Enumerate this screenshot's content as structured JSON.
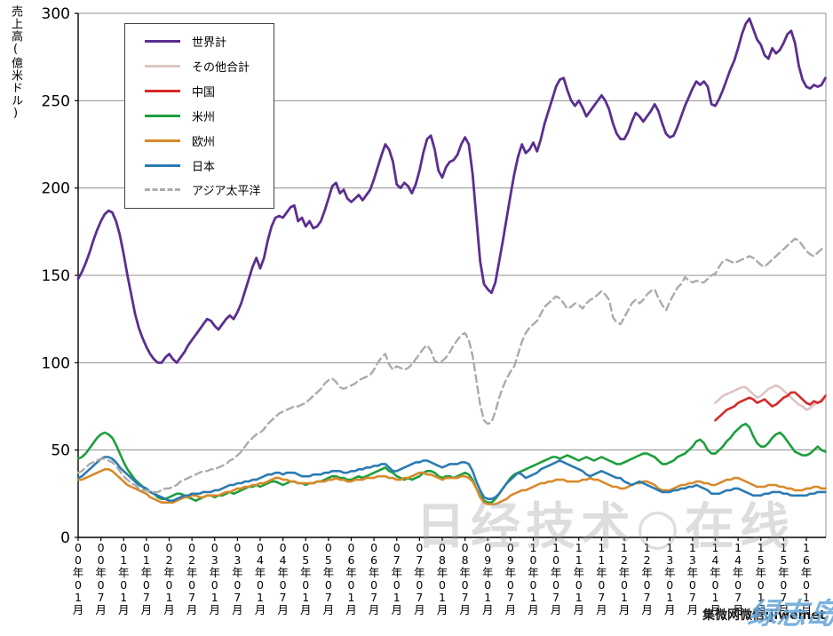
{
  "chart_data": {
    "type": "line",
    "title": "",
    "ylabel": "売上高(億米ドル)",
    "xlabel": "",
    "ylim": [
      0,
      300
    ],
    "ytick_step": 50,
    "grid": true,
    "legend_position": "top-left-inside",
    "x_start": "2000-01",
    "x_end": "2016-06",
    "months_total": 198,
    "x_tick_labels": [
      "00年01月",
      "00年07月",
      "01年01月",
      "01年07月",
      "02年01月",
      "02年07月",
      "03年01月",
      "03年07月",
      "04年01月",
      "04年07月",
      "05年01月",
      "05年07月",
      "06年01月",
      "06年07月",
      "07年01月",
      "07年07月",
      "08年01月",
      "08年07月",
      "09年01月",
      "09年07月",
      "10年01月",
      "10年07月",
      "11年01月",
      "11年07月",
      "12年01月",
      "12年07月",
      "13年01月",
      "13年07月",
      "14年01月",
      "14年07月",
      "15年01月",
      "15年07月",
      "16年01月"
    ],
    "series": [
      {
        "name": "世界計",
        "color": "#5B2E90",
        "dash": null,
        "width": 2.8,
        "start_month": 0,
        "values": [
          148,
          152,
          157,
          163,
          170,
          176,
          181,
          185,
          187,
          186,
          181,
          173,
          162,
          150,
          139,
          128,
          120,
          114,
          109,
          105,
          102,
          100,
          100,
          103,
          105,
          102,
          100,
          103,
          106,
          110,
          113,
          116,
          119,
          122,
          125,
          124,
          121,
          119,
          122,
          125,
          127,
          125,
          129,
          134,
          141,
          148,
          155,
          160,
          154,
          160,
          170,
          178,
          183,
          184,
          183,
          186,
          189,
          190,
          181,
          183,
          178,
          181,
          177,
          178,
          181,
          187,
          194,
          201,
          203,
          197,
          199,
          194,
          192,
          194,
          196,
          193,
          196,
          199,
          205,
          212,
          219,
          225,
          222,
          215,
          202,
          200,
          203,
          201,
          197,
          202,
          210,
          220,
          228,
          230,
          222,
          210,
          206,
          212,
          215,
          216,
          219,
          225,
          229,
          225,
          208,
          183,
          158,
          145,
          142,
          140,
          146,
          158,
          170,
          183,
          196,
          208,
          218,
          225,
          220,
          222,
          226,
          221,
          228,
          237,
          244,
          251,
          258,
          262,
          263,
          256,
          250,
          247,
          250,
          246,
          241,
          244,
          247,
          250,
          253,
          250,
          245,
          237,
          231,
          228,
          228,
          232,
          238,
          243,
          241,
          238,
          241,
          244,
          248,
          244,
          237,
          231,
          229,
          230,
          235,
          241,
          247,
          252,
          257,
          261,
          259,
          261,
          258,
          248,
          247,
          251,
          256,
          262,
          268,
          273,
          280,
          288,
          294,
          297,
          291,
          285,
          282,
          276,
          274,
          280,
          277,
          279,
          283,
          288,
          290,
          283,
          270,
          262,
          258,
          257,
          259,
          258,
          259,
          263
        ]
      },
      {
        "name": "その他合計",
        "color": "#DCC5C4",
        "dash": null,
        "width": 2.6,
        "start_month": 168,
        "values": [
          77,
          79,
          81,
          82,
          83,
          84,
          85,
          86,
          86,
          84,
          82,
          80,
          81,
          83,
          85,
          86,
          87,
          86,
          84,
          82,
          80,
          78,
          76,
          75,
          73,
          74,
          76,
          77,
          79,
          80
        ]
      },
      {
        "name": "中国",
        "color": "#D62A28",
        "dash": null,
        "width": 2.6,
        "start_month": 168,
        "values": [
          67,
          69,
          71,
          73,
          74,
          75,
          77,
          78,
          79,
          80,
          79,
          77,
          78,
          79,
          77,
          75,
          76,
          78,
          80,
          81,
          83,
          83,
          81,
          79,
          77,
          76,
          78,
          77,
          78,
          81
        ]
      },
      {
        "name": "米州",
        "color": "#1C9F3C",
        "dash": null,
        "width": 2.6,
        "start_month": 0,
        "values": [
          45,
          46,
          48,
          51,
          54,
          57,
          59,
          60,
          59,
          57,
          53,
          48,
          43,
          39,
          36,
          33,
          31,
          29,
          27,
          26,
          25,
          23,
          22,
          22,
          23,
          24,
          25,
          25,
          24,
          23,
          22,
          21,
          22,
          23,
          24,
          24,
          23,
          24,
          24,
          25,
          26,
          25,
          26,
          27,
          28,
          29,
          29,
          30,
          29,
          30,
          31,
          32,
          32,
          31,
          30,
          31,
          32,
          32,
          31,
          31,
          30,
          31,
          31,
          32,
          32,
          33,
          34,
          35,
          35,
          34,
          34,
          33,
          33,
          34,
          35,
          34,
          35,
          36,
          37,
          38,
          39,
          40,
          38,
          37,
          35,
          34,
          33,
          34,
          33,
          34,
          35,
          37,
          38,
          38,
          37,
          35,
          34,
          35,
          35,
          34,
          35,
          36,
          37,
          36,
          33,
          28,
          24,
          21,
          20,
          20,
          22,
          25,
          28,
          31,
          34,
          36,
          37,
          38,
          39,
          40,
          41,
          42,
          43,
          44,
          45,
          46,
          46,
          45,
          46,
          47,
          46,
          45,
          44,
          45,
          46,
          45,
          44,
          45,
          46,
          45,
          44,
          43,
          42,
          42,
          43,
          44,
          45,
          46,
          47,
          48,
          48,
          47,
          46,
          44,
          42,
          42,
          43,
          44,
          46,
          47,
          48,
          50,
          52,
          55,
          56,
          54,
          50,
          48,
          48,
          50,
          52,
          55,
          57,
          60,
          62,
          64,
          65,
          63,
          58,
          54,
          52,
          52,
          54,
          57,
          59,
          60,
          58,
          55,
          52,
          49,
          48,
          47,
          47,
          48,
          50,
          52,
          50,
          49
        ]
      },
      {
        "name": "欧州",
        "color": "#D8892B",
        "dash": null,
        "width": 2.6,
        "start_month": 0,
        "values": [
          33,
          33,
          34,
          35,
          36,
          37,
          38,
          39,
          39,
          38,
          36,
          34,
          32,
          30,
          29,
          28,
          27,
          26,
          25,
          23,
          22,
          21,
          20,
          20,
          20,
          20,
          21,
          22,
          23,
          23,
          24,
          24,
          23,
          23,
          24,
          24,
          24,
          24,
          25,
          26,
          26,
          27,
          28,
          28,
          29,
          29,
          30,
          30,
          31,
          31,
          32,
          33,
          34,
          34,
          33,
          33,
          32,
          32,
          31,
          31,
          31,
          31,
          31,
          32,
          32,
          32,
          33,
          33,
          34,
          33,
          33,
          32,
          32,
          33,
          33,
          33,
          34,
          34,
          34,
          35,
          35,
          35,
          34,
          34,
          33,
          33,
          34,
          34,
          35,
          36,
          37,
          37,
          36,
          36,
          35,
          34,
          33,
          34,
          34,
          34,
          34,
          35,
          35,
          34,
          32,
          28,
          23,
          20,
          19,
          19,
          19,
          20,
          21,
          22,
          24,
          25,
          26,
          27,
          27,
          28,
          29,
          30,
          31,
          31,
          32,
          32,
          33,
          33,
          33,
          32,
          32,
          32,
          32,
          33,
          33,
          34,
          33,
          33,
          32,
          31,
          30,
          29,
          29,
          28,
          28,
          29,
          30,
          31,
          31,
          32,
          32,
          31,
          30,
          28,
          27,
          27,
          27,
          28,
          29,
          30,
          30,
          31,
          31,
          32,
          32,
          31,
          31,
          30,
          30,
          31,
          32,
          33,
          33,
          34,
          34,
          33,
          32,
          31,
          30,
          29,
          29,
          29,
          30,
          30,
          30,
          29,
          29,
          28,
          28,
          27,
          27,
          27,
          28,
          28,
          29,
          29,
          28,
          28
        ]
      },
      {
        "name": "日本",
        "color": "#2B7BB1",
        "dash": null,
        "width": 2.6,
        "start_month": 0,
        "values": [
          34,
          35,
          37,
          39,
          41,
          43,
          45,
          46,
          46,
          45,
          43,
          40,
          38,
          36,
          34,
          32,
          30,
          29,
          28,
          26,
          25,
          24,
          23,
          22,
          21,
          21,
          22,
          23,
          24,
          24,
          25,
          25,
          25,
          26,
          26,
          26,
          27,
          27,
          28,
          29,
          30,
          30,
          31,
          31,
          32,
          32,
          33,
          33,
          34,
          35,
          36,
          36,
          37,
          37,
          36,
          37,
          37,
          37,
          36,
          35,
          35,
          35,
          36,
          36,
          36,
          37,
          37,
          38,
          38,
          38,
          37,
          37,
          38,
          38,
          39,
          39,
          40,
          40,
          41,
          41,
          42,
          42,
          40,
          38,
          38,
          39,
          40,
          41,
          42,
          43,
          43,
          44,
          44,
          43,
          42,
          41,
          40,
          41,
          42,
          42,
          42,
          43,
          43,
          42,
          38,
          32,
          27,
          23,
          22,
          22,
          23,
          25,
          28,
          31,
          33,
          35,
          37,
          36,
          34,
          35,
          36,
          37,
          39,
          40,
          41,
          42,
          43,
          44,
          43,
          42,
          41,
          40,
          39,
          38,
          36,
          35,
          36,
          37,
          38,
          37,
          36,
          35,
          34,
          34,
          32,
          31,
          30,
          31,
          32,
          31,
          30,
          29,
          28,
          27,
          26,
          26,
          26,
          27,
          27,
          28,
          28,
          29,
          29,
          30,
          29,
          28,
          27,
          25,
          25,
          25,
          26,
          27,
          27,
          28,
          28,
          27,
          26,
          25,
          24,
          24,
          24,
          25,
          25,
          26,
          26,
          26,
          25,
          25,
          24,
          24,
          24,
          24,
          24,
          25,
          25,
          26,
          26,
          26
        ]
      },
      {
        "name": "アジア太平洋",
        "color": "#ABABAB",
        "dash": "8,5",
        "width": 2.4,
        "start_month": 0,
        "values": [
          37,
          38,
          40,
          42,
          43,
          44,
          45,
          45,
          44,
          43,
          41,
          38,
          35,
          33,
          31,
          30,
          28,
          27,
          27,
          26,
          26,
          26,
          27,
          28,
          28,
          29,
          30,
          32,
          33,
          34,
          35,
          36,
          37,
          38,
          38,
          39,
          39,
          40,
          41,
          42,
          44,
          45,
          47,
          49,
          52,
          55,
          57,
          59,
          60,
          62,
          65,
          67,
          69,
          71,
          72,
          73,
          74,
          75,
          75,
          76,
          77,
          79,
          81,
          83,
          85,
          88,
          90,
          91,
          89,
          86,
          85,
          86,
          87,
          88,
          90,
          91,
          92,
          93,
          96,
          100,
          103,
          105,
          99,
          96,
          98,
          97,
          96,
          97,
          99,
          102,
          105,
          108,
          110,
          107,
          101,
          100,
          101,
          103,
          106,
          110,
          113,
          116,
          117,
          113,
          104,
          90,
          76,
          67,
          65,
          66,
          72,
          80,
          86,
          91,
          95,
          98,
          105,
          112,
          117,
          120,
          122,
          124,
          128,
          132,
          134,
          136,
          138,
          137,
          134,
          131,
          132,
          134,
          133,
          131,
          134,
          136,
          137,
          139,
          141,
          139,
          136,
          126,
          123,
          122,
          126,
          130,
          134,
          136,
          134,
          136,
          139,
          141,
          142,
          137,
          133,
          130,
          135,
          139,
          143,
          145,
          149,
          147,
          146,
          147,
          146,
          146,
          148,
          150,
          151,
          155,
          158,
          159,
          158,
          157,
          158,
          159,
          160,
          161,
          160,
          158,
          156,
          155,
          157,
          159,
          161,
          163,
          165,
          167,
          169,
          171,
          170,
          167,
          164,
          162,
          161,
          163,
          165,
          166
        ]
      }
    ]
  },
  "watermarks": {
    "center": "日经技术○在线",
    "bottom_right": "集微网微信:jiweinet",
    "bottom_right_overlay": "绿志岛"
  },
  "colors": {
    "gridline": "#909090",
    "axis": "#000000"
  }
}
